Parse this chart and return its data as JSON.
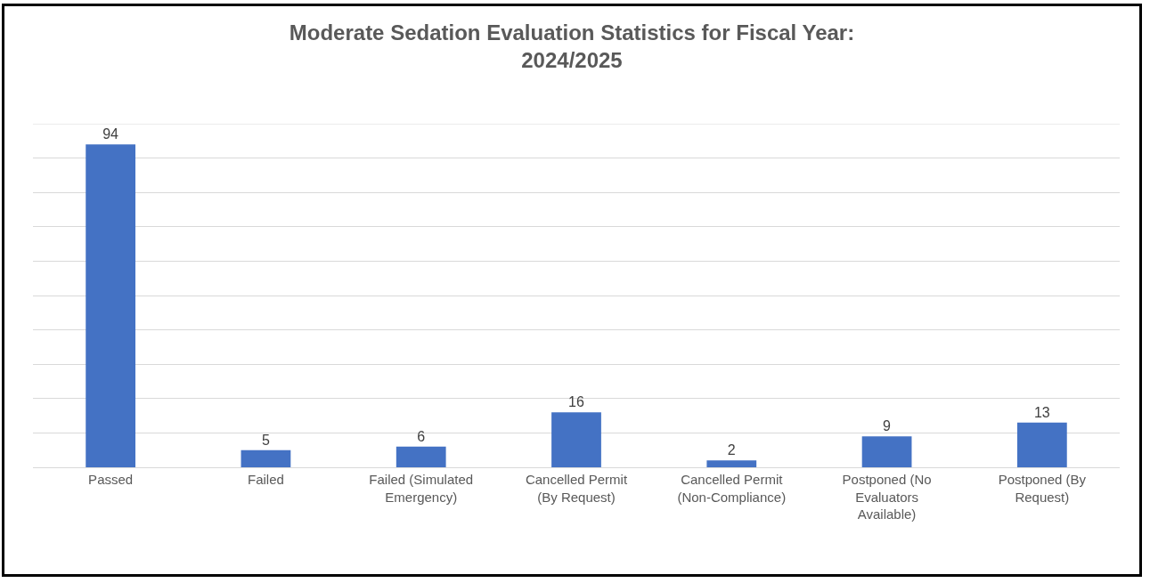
{
  "chart_data": {
    "type": "bar",
    "title": "Moderate Sedation Evaluation Statistics for Fiscal Year: 2024/2025",
    "categories": [
      "Passed",
      "Failed",
      "Failed (Simulated Emergency)",
      "Cancelled Permit (By Request)",
      "Cancelled Permit (Non-Compliance)",
      "Postponed (No Evaluators Available)",
      "Postponed (By Request)"
    ],
    "values": [
      94,
      5,
      6,
      16,
      2,
      9,
      13
    ],
    "color": "#4472c4",
    "ylim": [
      0,
      100
    ],
    "yticks": [
      {
        "value": 0,
        "label": null
      },
      {
        "value": 10,
        "label": null
      },
      {
        "value": 20,
        "label": null
      },
      {
        "value": 30,
        "label": null
      },
      {
        "value": 40,
        "label": null
      },
      {
        "value": 50,
        "label": null
      },
      {
        "value": 60,
        "label": null
      },
      {
        "value": 70,
        "label": null
      },
      {
        "value": 80,
        "label": null
      },
      {
        "value": 90,
        "label": null
      },
      {
        "value": 100,
        "label": null
      }
    ],
    "grid": "y",
    "data_labels": true,
    "tick_labels": "x"
  }
}
